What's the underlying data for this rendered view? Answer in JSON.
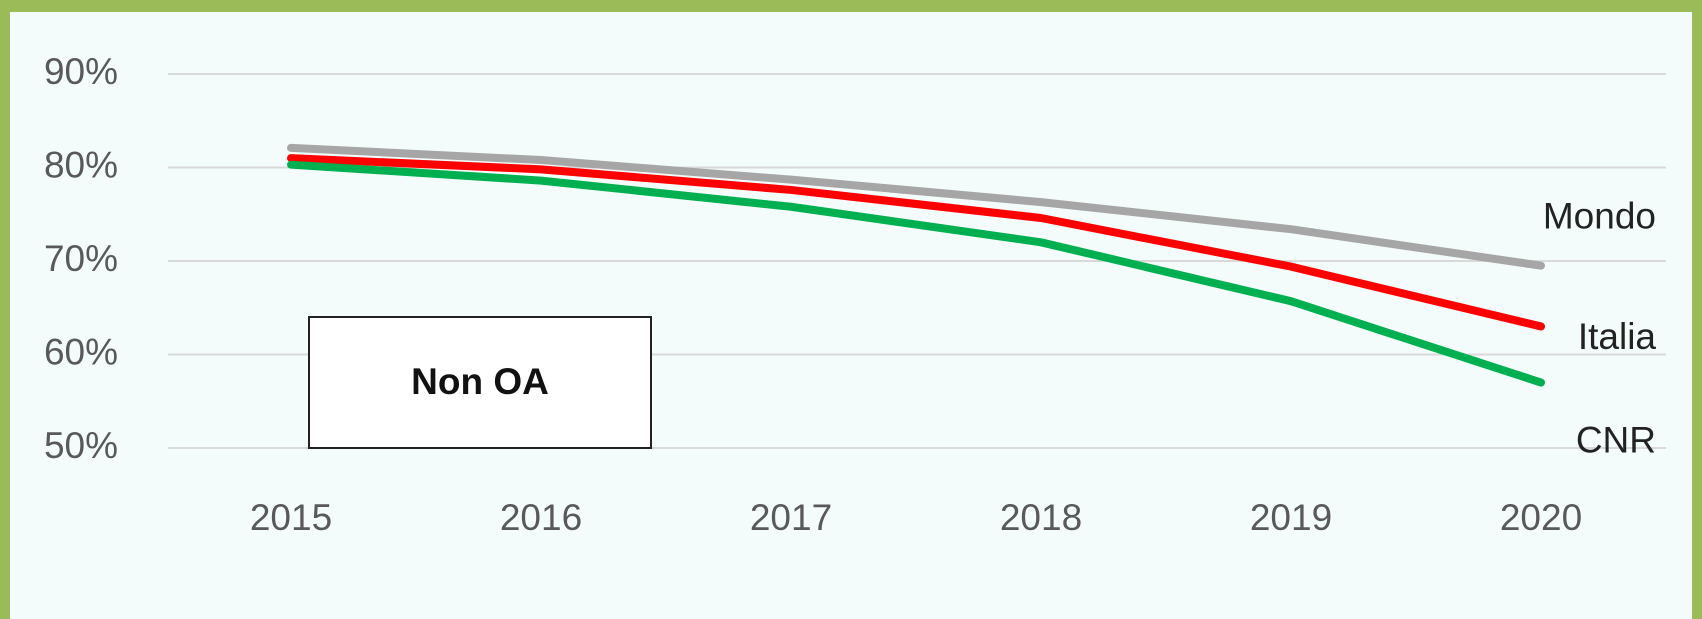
{
  "chart_data": {
    "type": "line",
    "categories": [
      "2015",
      "2016",
      "2017",
      "2018",
      "2019",
      "2020"
    ],
    "series": [
      {
        "name": "Mondo",
        "color": "#a6a6a6",
        "values": [
          82.1,
          80.8,
          78.7,
          76.3,
          73.4,
          69.5
        ]
      },
      {
        "name": "Italia",
        "color": "#ff0000",
        "values": [
          81,
          79.8,
          77.6,
          74.6,
          69.4,
          63
        ]
      },
      {
        "name": "CNR",
        "color": "#00b050",
        "values": [
          80.3,
          78.6,
          75.8,
          72,
          65.7,
          57
        ]
      }
    ],
    "annotation": "Non OA",
    "ylim": [
      50,
      90
    ],
    "yticks": [
      {
        "value": 50,
        "label": "50%"
      },
      {
        "value": 60,
        "label": "60%"
      },
      {
        "value": 70,
        "label": "70%"
      },
      {
        "value": 80,
        "label": "80%"
      },
      {
        "value": 90,
        "label": "90%"
      }
    ],
    "grid": true
  }
}
